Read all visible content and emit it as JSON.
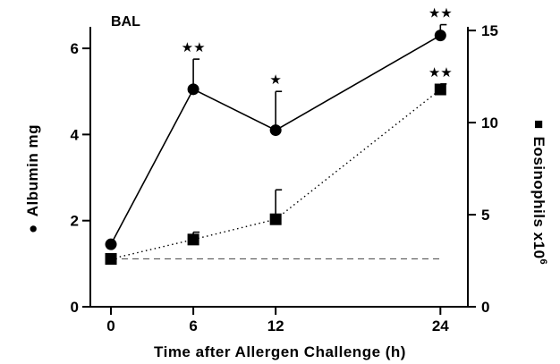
{
  "chart_data": {
    "type": "line",
    "title": "BAL",
    "xlabel": "Time after Allergen Challenge (h)",
    "x": [
      0,
      6,
      12,
      24
    ],
    "xticks": [
      "0",
      "6",
      "12",
      "24"
    ],
    "xlim": [
      -1.5,
      26
    ],
    "y_left": {
      "label": "Albumin  mg",
      "marker_symbol": "●",
      "ticks": [
        "0",
        "2",
        "4",
        "6"
      ],
      "ylim": [
        0,
        6.5
      ]
    },
    "y_right": {
      "label": "Eosinophils  x10",
      "superscript": "6",
      "marker_symbol": "■",
      "ticks": [
        "0",
        "5",
        "10",
        "15"
      ],
      "ylim": [
        0,
        15.2
      ]
    },
    "series": [
      {
        "marker": "circle",
        "axis": "left",
        "line_style": "solid",
        "values": [
          1.45,
          5.05,
          4.1,
          6.3
        ],
        "error": [
          0,
          0.7,
          0.9,
          0.25
        ],
        "significance": [
          "",
          "**",
          "*",
          "**"
        ]
      },
      {
        "marker": "square",
        "axis": "right",
        "line_style": "dotted",
        "values": [
          2.6,
          3.65,
          4.75,
          11.8
        ],
        "error": [
          0,
          0.4,
          1.6,
          0.3
        ],
        "significance": [
          "",
          "",
          "",
          "**"
        ]
      }
    ],
    "baseline": {
      "axis": "right",
      "value": 2.6,
      "line_style": "dashed"
    }
  }
}
